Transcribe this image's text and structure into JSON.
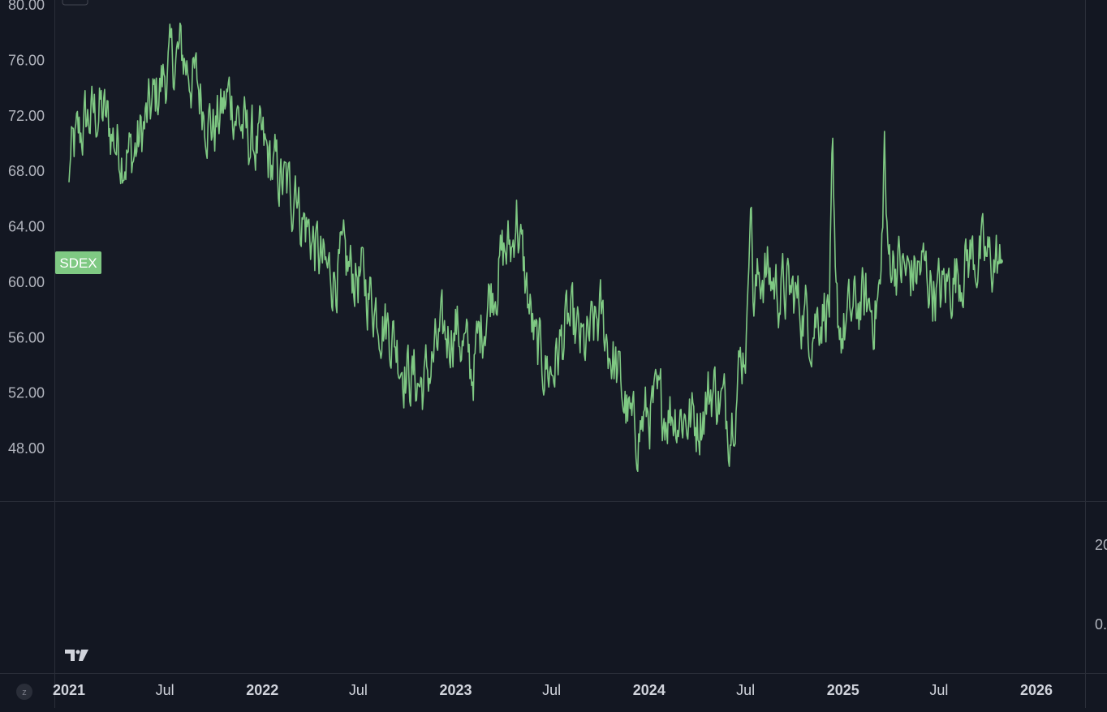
{
  "colors": {
    "background": "#131722",
    "main_pane": "#161a25",
    "series": "#7fc983",
    "axis_text": "#b2b5be",
    "divider": "#2a2e39"
  },
  "chart_data": {
    "type": "line",
    "series": [
      {
        "name": "SDEX",
        "x": [
          "2021-01-01",
          "2021-02-01",
          "2021-03-01",
          "2021-04-01",
          "2021-05-01",
          "2021-06-01",
          "2021-07-01",
          "2021-08-01",
          "2021-09-01",
          "2021-10-01",
          "2021-11-01",
          "2021-12-01",
          "2022-01-01",
          "2022-02-01",
          "2022-03-01",
          "2022-04-01",
          "2022-05-01",
          "2022-06-01",
          "2022-07-01",
          "2022-08-01",
          "2022-09-01",
          "2022-10-01",
          "2022-11-01",
          "2022-12-01",
          "2023-01-01",
          "2023-02-01",
          "2023-03-01",
          "2023-04-01",
          "2023-05-01",
          "2023-06-01",
          "2023-07-01",
          "2023-08-01",
          "2023-09-01",
          "2023-10-01",
          "2023-11-01",
          "2023-12-01",
          "2024-01-01",
          "2024-02-01",
          "2024-03-01",
          "2024-04-01",
          "2024-05-01",
          "2024-06-01",
          "2024-07-01",
          "2024-08-01",
          "2024-09-01",
          "2024-10-01",
          "2024-11-01",
          "2024-12-01",
          "2025-01-01",
          "2025-02-01",
          "2025-03-01",
          "2025-04-01",
          "2025-05-01",
          "2025-06-01",
          "2025-07-01",
          "2025-08-01",
          "2025-09-01",
          "2025-10-01"
        ],
        "values": [
          68.5,
          71.5,
          72.5,
          70.0,
          69.0,
          72.0,
          75.0,
          76.5,
          74.0,
          71.0,
          73.5,
          70.5,
          69.5,
          67.5,
          66.0,
          63.5,
          60.5,
          61.0,
          60.5,
          58.5,
          56.5,
          53.5,
          52.5,
          55.5,
          57.0,
          53.5,
          58.5,
          62.0,
          63.0,
          55.0,
          53.5,
          57.0,
          55.0,
          57.5,
          53.5,
          49.0,
          50.5,
          51.0,
          50.5,
          50.0,
          52.5,
          50.0,
          56.0,
          61.0,
          59.5,
          59.0,
          57.0,
          58.5,
          56.5,
          58.5,
          58.0,
          62.0,
          60.5,
          61.0,
          59.0,
          60.5,
          62.0,
          61.5
        ]
      }
    ],
    "series_label": "SDEX",
    "y_ticks": [
      "80.00",
      "76.00",
      "72.00",
      "68.00",
      "64.00",
      "60.00",
      "56.00",
      "52.00",
      "48.00"
    ],
    "ylim": [
      44.0,
      80.0
    ],
    "x_ticks": [
      {
        "label": "2021",
        "date": "2021-01-01",
        "year": true
      },
      {
        "label": "Jul",
        "date": "2021-07-01",
        "year": false
      },
      {
        "label": "2022",
        "date": "2022-01-01",
        "year": true
      },
      {
        "label": "Jul",
        "date": "2022-07-01",
        "year": false
      },
      {
        "label": "2023",
        "date": "2023-01-01",
        "year": true
      },
      {
        "label": "Jul",
        "date": "2023-07-01",
        "year": false
      },
      {
        "label": "2024",
        "date": "2024-01-01",
        "year": true
      },
      {
        "label": "Jul",
        "date": "2024-07-01",
        "year": false
      },
      {
        "label": "2025",
        "date": "2025-01-01",
        "year": true
      },
      {
        "label": "Jul",
        "date": "2025-07-01",
        "year": false
      },
      {
        "label": "2026",
        "date": "2026-01-01",
        "year": true
      }
    ],
    "xlim": [
      "2021-01-01",
      "2026-04-01"
    ],
    "lower_pane_ticks": [
      "20",
      "0."
    ],
    "title": "",
    "xlabel": "",
    "ylabel": "",
    "grid": false,
    "legend": "none"
  },
  "footer": {
    "tz_button_label": "z",
    "logo_text": "TV"
  }
}
